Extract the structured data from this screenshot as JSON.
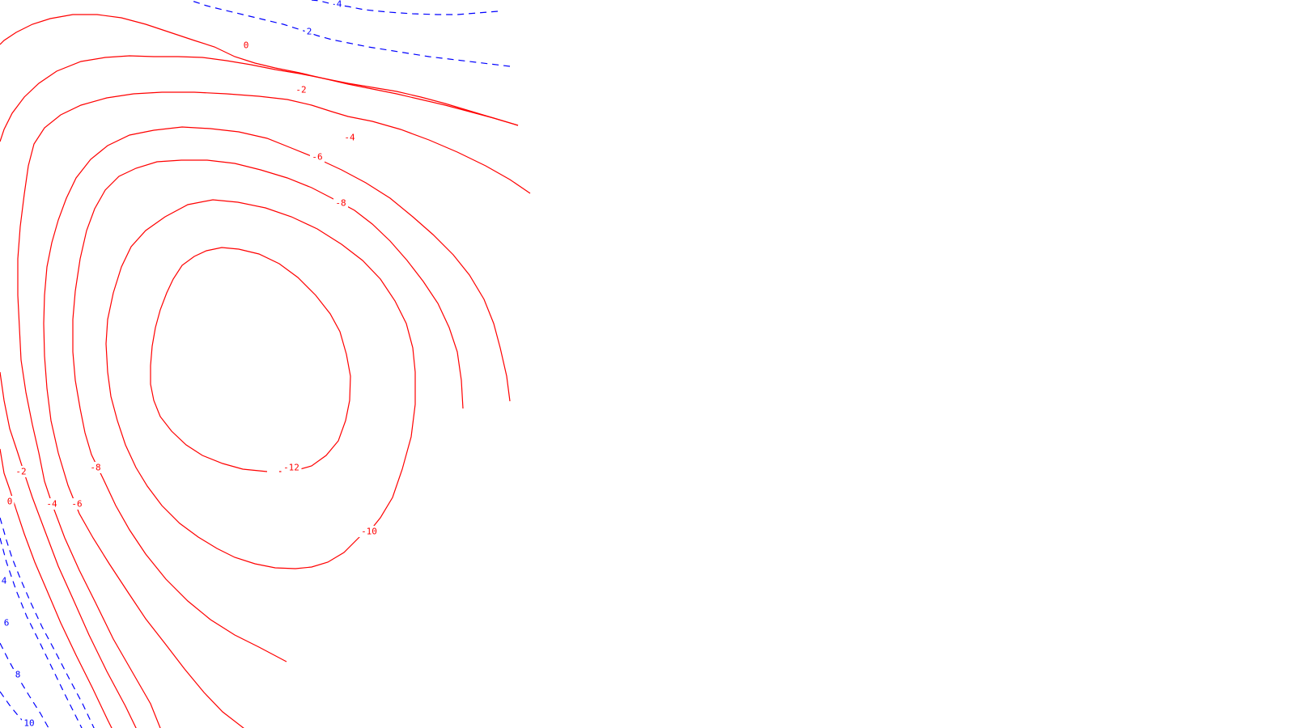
{
  "chart_data": {
    "type": "contour",
    "title": "",
    "xlabel": "",
    "ylabel": "",
    "grid": false,
    "legend": "none",
    "colors": {
      "negative": "#ff0000",
      "positive": "#0000ff",
      "background": "#ffffff"
    },
    "line_styles": {
      "negative": "solid",
      "positive": "dashed"
    },
    "levels": [
      {
        "value": 10,
        "label": "10",
        "sign": "positive"
      },
      {
        "value": 8,
        "label": "8",
        "sign": "positive"
      },
      {
        "value": 6,
        "label": "6",
        "sign": "positive"
      },
      {
        "value": 4,
        "label": "4",
        "sign": "positive"
      },
      {
        "value": 2,
        "label": "2",
        "sign": "positive"
      },
      {
        "value": 0,
        "label": "0",
        "sign": "negative"
      },
      {
        "value": -2,
        "label": "-2",
        "sign": "negative"
      },
      {
        "value": -4,
        "label": "-4",
        "sign": "negative"
      },
      {
        "value": -6,
        "label": "-6",
        "sign": "negative"
      },
      {
        "value": -8,
        "label": "-8",
        "sign": "negative"
      },
      {
        "value": -10,
        "label": "-10",
        "sign": "negative"
      },
      {
        "value": -12,
        "label": "-12",
        "sign": "negative"
      }
    ],
    "minimum_level": -12,
    "maximum_level": 10
  }
}
